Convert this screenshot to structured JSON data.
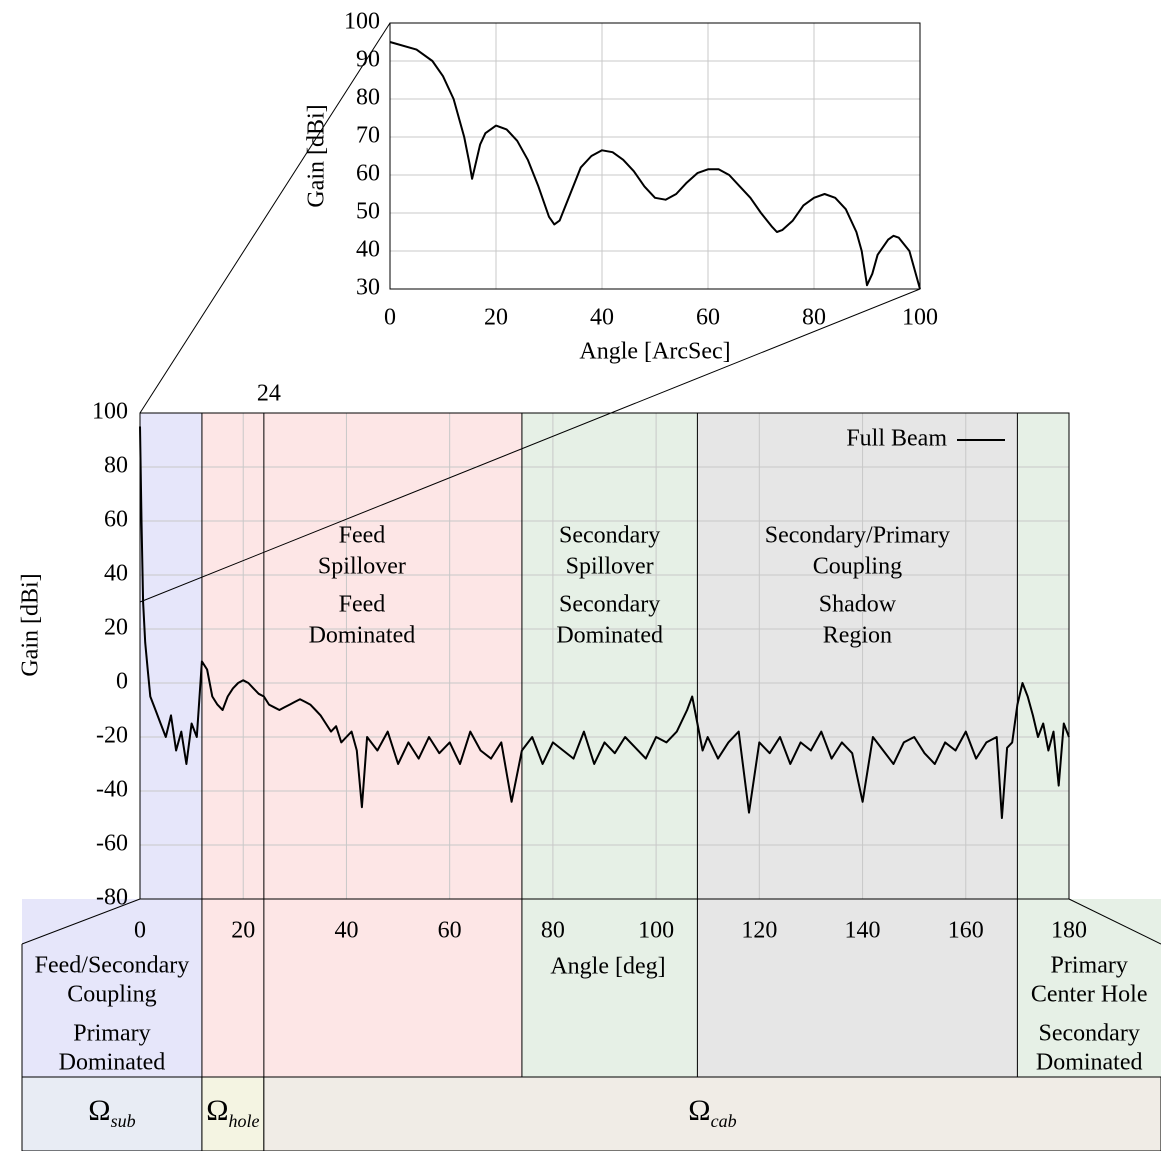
{
  "chart_data": [
    {
      "type": "line",
      "x_label": "Angle [ArcSec]",
      "y_label": "Gain [dBi]",
      "color": "#000000",
      "grid": true,
      "x": [
        0,
        5,
        8,
        10,
        12,
        14,
        15,
        15.5,
        16,
        17,
        18,
        20,
        22,
        24,
        26,
        28,
        30,
        31,
        32,
        34,
        36,
        38,
        40,
        42,
        44,
        46,
        48,
        50,
        52,
        54,
        56,
        58,
        60,
        62,
        64,
        66,
        68,
        70,
        72,
        73,
        74,
        76,
        78,
        80,
        82,
        84,
        86,
        88,
        89,
        90,
        91,
        92,
        94,
        95,
        96,
        98,
        99,
        100
      ],
      "values": [
        95,
        93,
        90,
        86,
        80,
        70,
        63,
        59,
        62,
        68,
        71,
        73,
        72,
        69,
        64,
        57,
        49,
        47,
        48,
        55,
        62,
        65,
        66.5,
        66,
        64,
        61,
        57,
        54,
        53.5,
        55,
        58,
        60.5,
        61.5,
        61.5,
        60,
        57,
        54,
        50,
        46.5,
        45,
        45.5,
        48,
        52,
        54,
        55,
        54,
        51,
        45,
        40,
        31,
        34,
        39,
        43,
        44,
        43.5,
        40,
        35,
        30
      ],
      "xlim": [
        0,
        100
      ],
      "ylim": [
        30,
        100
      ],
      "xticks": [
        0,
        20,
        40,
        60,
        80,
        100
      ],
      "yticks": [
        30,
        40,
        50,
        60,
        70,
        80,
        90,
        100
      ]
    },
    {
      "type": "line",
      "x_label": "Angle [deg]",
      "y_label": "Gain [dBi]",
      "grid": true,
      "legend": "top-right",
      "x": [
        0,
        0.3,
        0.6,
        1,
        1.5,
        2,
        3,
        4,
        5,
        6,
        7,
        8,
        9,
        10,
        11,
        12,
        13,
        14,
        15,
        16,
        17,
        18,
        19,
        20,
        21,
        22,
        23,
        24,
        25,
        26,
        27,
        28,
        29,
        30,
        31,
        32,
        33,
        34,
        35,
        36,
        37,
        38,
        39,
        40,
        41,
        42,
        43,
        44,
        46,
        48,
        50,
        52,
        54,
        56,
        58,
        60,
        62,
        64,
        66,
        68,
        70,
        72,
        74,
        76,
        78,
        80,
        82,
        84,
        86,
        88,
        90,
        92,
        94,
        96,
        98,
        100,
        102,
        104,
        106,
        107,
        108,
        109,
        110,
        112,
        114,
        116,
        118,
        120,
        122,
        124,
        126,
        128,
        130,
        132,
        134,
        136,
        138,
        140,
        142,
        144,
        146,
        148,
        150,
        152,
        154,
        156,
        158,
        160,
        162,
        164,
        166,
        167,
        168,
        169,
        170,
        171,
        172,
        173,
        174,
        175,
        176,
        177,
        178,
        179,
        180
      ],
      "series": [
        {
          "name": "Full Beam",
          "color": "#000000",
          "values": [
            95,
            60,
            30,
            15,
            5,
            -5,
            -10,
            -15,
            -20,
            -12,
            -25,
            -18,
            -30,
            -15,
            -20,
            8,
            5,
            -5,
            -8,
            -10,
            -5,
            -2,
            0,
            1,
            0,
            -2,
            -4,
            -5,
            -8,
            -9,
            -10,
            -9,
            -8,
            -7,
            -6,
            -7,
            -8,
            -10,
            -12,
            -15,
            -18,
            -16,
            -22,
            -20,
            -18,
            -25,
            -46,
            -20,
            -25,
            -18,
            -30,
            -22,
            -28,
            -20,
            -26,
            -22,
            -30,
            -18,
            -25,
            -28,
            -22,
            -44,
            -25,
            -20,
            -30,
            -22,
            -25,
            -28,
            -18,
            -30,
            -22,
            -26,
            -20,
            -24,
            -28,
            -20,
            -22,
            -18,
            -10,
            -5,
            -15,
            -25,
            -20,
            -28,
            -22,
            -18,
            -48,
            -22,
            -26,
            -20,
            -30,
            -22,
            -25,
            -18,
            -28,
            -22,
            -26,
            -44,
            -20,
            -25,
            -30,
            -22,
            -20,
            -26,
            -30,
            -22,
            -25,
            -18,
            -28,
            -22,
            -20,
            -50,
            -24,
            -22,
            -8,
            0,
            -5,
            -12,
            -20,
            -15,
            -25,
            -18,
            -38,
            -15,
            -20
          ]
        }
      ],
      "xlim": [
        0,
        180
      ],
      "ylim": [
        -80,
        100
      ],
      "xticks": [
        0,
        20,
        40,
        60,
        80,
        100,
        120,
        140,
        160,
        180
      ],
      "yticks": [
        -80,
        -60,
        -40,
        -20,
        0,
        20,
        40,
        60,
        80,
        100
      ],
      "marked_angle": 24,
      "regions": [
        {
          "start": 0,
          "end": 12,
          "color": "#e6e6fa",
          "labels": [
            [
              "Feed/Secondary",
              "Coupling"
            ],
            [
              "Primary",
              "Dominated"
            ]
          ]
        },
        {
          "start": 12,
          "end": 74,
          "color": "#fde6e6",
          "labels": [
            [
              "Feed",
              "Spillover"
            ],
            [
              "Feed",
              "Dominated"
            ]
          ]
        },
        {
          "start": 74,
          "end": 108,
          "color": "#e6f0e6",
          "labels": [
            [
              "Secondary",
              "Spillover"
            ],
            [
              "Secondary",
              "Dominated"
            ]
          ]
        },
        {
          "start": 108,
          "end": 170,
          "color": "#e6e6e6",
          "labels": [
            [
              "Secondary/Primary",
              "Coupling"
            ],
            [
              "Shadow",
              "Region"
            ]
          ]
        },
        {
          "start": 170,
          "end": 180,
          "color": "#e6f0e6",
          "labels": [
            [
              "Primary",
              "Center  Hole"
            ],
            [
              "Secondary",
              "Dominated"
            ]
          ]
        }
      ],
      "coverage": [
        {
          "symbol": "Ω",
          "subscript": "sub",
          "start": 0,
          "end": 12,
          "color": "#e8ecf4"
        },
        {
          "symbol": "Ω",
          "subscript": "hole",
          "start": 12,
          "end": 24,
          "color": "#f4f4e2"
        },
        {
          "symbol": "Ω",
          "subscript": "cab",
          "start": 24,
          "end": 180,
          "color": "#f0ece6"
        }
      ]
    }
  ]
}
